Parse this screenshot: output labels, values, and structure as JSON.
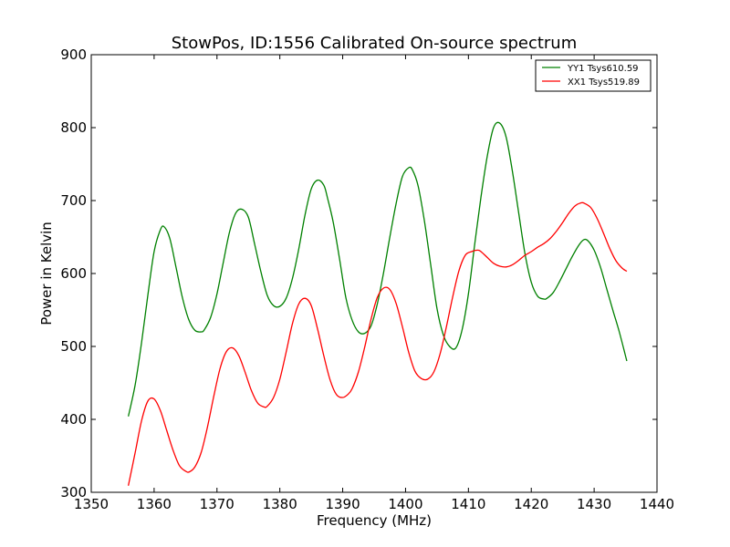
{
  "chart_data": {
    "type": "line",
    "title": "StowPos, ID:1556 Calibrated On-source spectrum",
    "xlabel": "Frequency (MHz)",
    "ylabel": "Power in Kelvin",
    "xlim": [
      1350,
      1440
    ],
    "ylim": [
      300,
      900
    ],
    "xticks": [
      1350,
      1360,
      1370,
      1380,
      1390,
      1400,
      1410,
      1420,
      1430,
      1440
    ],
    "yticks": [
      300,
      400,
      500,
      600,
      700,
      800,
      900
    ],
    "grid": false,
    "legend_position": "top-right",
    "series": [
      {
        "name": "YY1 Tsys610.59",
        "color": "#008000",
        "x": [
          1355.9,
          1357.0,
          1358.0,
          1359.0,
          1360.0,
          1361.0,
          1361.6,
          1362.5,
          1363.5,
          1364.5,
          1365.5,
          1366.5,
          1367.5,
          1368.0,
          1369.0,
          1370.0,
          1371.0,
          1372.0,
          1373.0,
          1374.0,
          1375.0,
          1376.0,
          1377.0,
          1378.0,
          1379.0,
          1380.0,
          1381.0,
          1382.0,
          1383.0,
          1384.0,
          1385.0,
          1386.0,
          1387.0,
          1387.6,
          1388.5,
          1389.5,
          1390.5,
          1391.5,
          1392.5,
          1393.5,
          1394.5,
          1395.5,
          1396.5,
          1397.5,
          1398.5,
          1399.5,
          1400.5,
          1401.1,
          1402.0,
          1403.0,
          1404.0,
          1405.0,
          1406.0,
          1407.0,
          1408.0,
          1409.0,
          1410.0,
          1411.0,
          1412.0,
          1413.0,
          1414.0,
          1415.0,
          1416.0,
          1417.0,
          1418.0,
          1419.0,
          1420.0,
          1421.0,
          1422.0,
          1422.5,
          1423.5,
          1424.5,
          1425.5,
          1426.5,
          1427.5,
          1428.3,
          1429.0,
          1430.0,
          1431.0,
          1432.0,
          1433.0,
          1434.0,
          1435.2
        ],
        "y": [
          404,
          448,
          505,
          570,
          630,
          660,
          664,
          648,
          608,
          567,
          537,
          522,
          520,
          523,
          540,
          572,
          615,
          657,
          683,
          688,
          677,
          640,
          602,
          570,
          556,
          555,
          566,
          593,
          633,
          680,
          716,
          728,
          721,
          703,
          670,
          620,
          567,
          536,
          520,
          518,
          528,
          558,
          601,
          650,
          696,
          733,
          745,
          742,
          720,
          672,
          612,
          552,
          516,
          500,
          498,
          523,
          572,
          640,
          705,
          761,
          800,
          806,
          787,
          740,
          683,
          627,
          588,
          569,
          565,
          566,
          574,
          589,
          606,
          623,
          638,
          646,
          645,
          632,
          609,
          579,
          549,
          520,
          480
        ]
      },
      {
        "name": "XX1 Tsys519.89",
        "color": "#ff0000",
        "x": [
          1355.9,
          1357.0,
          1358.0,
          1359.0,
          1360.0,
          1361.0,
          1362.0,
          1363.0,
          1364.0,
          1365.0,
          1365.6,
          1366.5,
          1367.5,
          1368.5,
          1369.5,
          1370.5,
          1371.5,
          1372.5,
          1373.5,
          1374.5,
          1375.5,
          1376.5,
          1377.5,
          1378.0,
          1379.0,
          1380.0,
          1381.0,
          1382.0,
          1383.0,
          1384.0,
          1385.0,
          1386.0,
          1387.0,
          1388.0,
          1389.0,
          1390.0,
          1390.8,
          1391.5,
          1392.5,
          1393.5,
          1394.5,
          1395.5,
          1396.5,
          1397.5,
          1398.5,
          1399.5,
          1400.5,
          1401.5,
          1402.5,
          1403.5,
          1404.5,
          1405.5,
          1406.5,
          1407.5,
          1408.5,
          1409.5,
          1410.5,
          1411.5,
          1412.0,
          1413.0,
          1414.0,
          1415.0,
          1416.0,
          1417.0,
          1418.0,
          1419.0,
          1420.0,
          1421.0,
          1422.0,
          1423.0,
          1424.0,
          1425.0,
          1426.0,
          1427.0,
          1428.0,
          1428.5,
          1429.5,
          1430.5,
          1431.5,
          1432.5,
          1433.5,
          1434.5,
          1435.2
        ],
        "y": [
          309,
          355,
          398,
          425,
          428,
          412,
          385,
          358,
          337,
          329,
          328,
          335,
          355,
          390,
          432,
          470,
          493,
          498,
          487,
          464,
          439,
          422,
          417,
          418,
          430,
          455,
          492,
          531,
          558,
          566,
          556,
          524,
          487,
          454,
          434,
          430,
          434,
          442,
          465,
          499,
          537,
          567,
          580,
          578,
          559,
          527,
          492,
          466,
          456,
          455,
          465,
          490,
          527,
          568,
          604,
          625,
          630,
          632,
          630,
          622,
          614,
          610,
          609,
          612,
          618,
          625,
          630,
          636,
          641,
          648,
          658,
          670,
          683,
          693,
          697,
          696,
          690,
          675,
          655,
          634,
          617,
          607,
          603
        ]
      }
    ]
  }
}
